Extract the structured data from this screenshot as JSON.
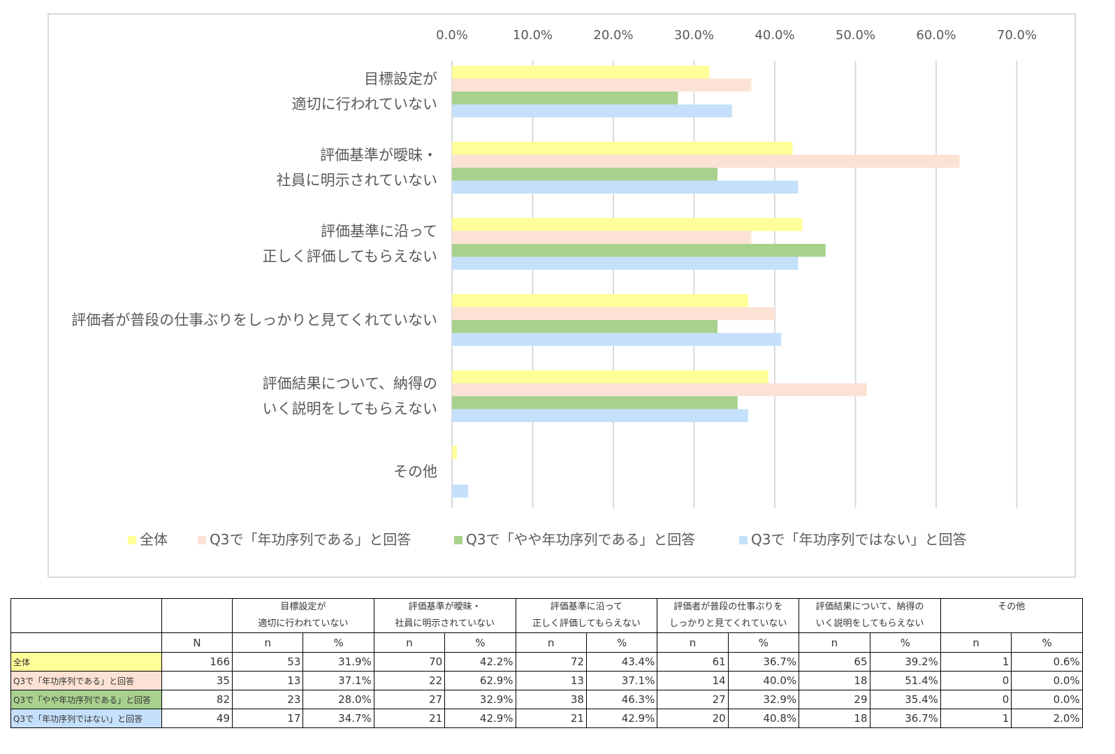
{
  "chart_data": {
    "type": "bar",
    "orientation": "horizontal",
    "categories": [
      [
        "目標設定が",
        "適切に行われていない"
      ],
      [
        "評価基準が曖昧・",
        "社員に明示されていない"
      ],
      [
        "評価基準に沿って",
        "正しく評価してもらえない"
      ],
      [
        "評価者が普段の仕事ぶりをしっかりと見てくれていない"
      ],
      [
        "評価結果について、納得の",
        "いく説明をしてもらえない"
      ],
      [
        "その他"
      ]
    ],
    "series": [
      {
        "name": "全体",
        "color": "#ffff99",
        "values": [
          31.9,
          42.2,
          43.4,
          36.7,
          39.2,
          0.6
        ]
      },
      {
        "name": "Q3で「年功序列である」と回答",
        "color": "#fbe2d5",
        "values": [
          37.1,
          62.9,
          37.1,
          40.0,
          51.4,
          0.0
        ]
      },
      {
        "name": "Q3で「やや年功序列である」と回答",
        "color": "#a9d18e",
        "values": [
          28.0,
          32.9,
          46.3,
          32.9,
          35.4,
          0.0
        ]
      },
      {
        "name": "Q3で「年功序列ではない」と回答",
        "color": "#c5e0fa",
        "values": [
          34.7,
          42.9,
          42.9,
          40.8,
          36.7,
          2.0
        ]
      }
    ],
    "xlim": [
      0,
      70
    ],
    "xticks": [
      "0.0%",
      "10.0%",
      "20.0%",
      "30.0%",
      "40.0%",
      "50.0%",
      "60.0%",
      "70.0%"
    ],
    "grid": true,
    "legend_position": "bottom"
  },
  "table": {
    "header_groups": [
      [
        "目標設定が",
        "適切に行われていない"
      ],
      [
        "評価基準が曖昧・",
        "社員に明示されていない"
      ],
      [
        "評価基準に沿って",
        "正しく評価してもらえない"
      ],
      [
        "評価者が普段の仕事ぶりを",
        "しっかりと見てくれていない"
      ],
      [
        "評価結果について、納得の",
        "いく説明をしてもらえない"
      ],
      [
        "その他"
      ]
    ],
    "subheaders": {
      "N": "N",
      "n": "n",
      "pct": "%"
    },
    "rows": [
      {
        "label": "全体",
        "color": "#ffff99",
        "N": "166",
        "cells": [
          [
            "53",
            "31.9%"
          ],
          [
            "70",
            "42.2%"
          ],
          [
            "72",
            "43.4%"
          ],
          [
            "61",
            "36.7%"
          ],
          [
            "65",
            "39.2%"
          ],
          [
            "1",
            "0.6%"
          ]
        ]
      },
      {
        "label": "Q3で「年功序列である」と回答",
        "color": "#fbe2d5",
        "N": "35",
        "cells": [
          [
            "13",
            "37.1%"
          ],
          [
            "22",
            "62.9%"
          ],
          [
            "13",
            "37.1%"
          ],
          [
            "14",
            "40.0%"
          ],
          [
            "18",
            "51.4%"
          ],
          [
            "0",
            "0.0%"
          ]
        ]
      },
      {
        "label": "Q3で「やや年功序列である」と回答",
        "color": "#a9d18e",
        "N": "82",
        "cells": [
          [
            "23",
            "28.0%"
          ],
          [
            "27",
            "32.9%"
          ],
          [
            "38",
            "46.3%"
          ],
          [
            "27",
            "32.9%"
          ],
          [
            "29",
            "35.4%"
          ],
          [
            "0",
            "0.0%"
          ]
        ]
      },
      {
        "label": "Q3で「年功序列ではない」と回答",
        "color": "#c5e0fa",
        "N": "49",
        "cells": [
          [
            "17",
            "34.7%"
          ],
          [
            "21",
            "42.9%"
          ],
          [
            "21",
            "42.9%"
          ],
          [
            "20",
            "40.8%"
          ],
          [
            "18",
            "36.7%"
          ],
          [
            "1",
            "2.0%"
          ]
        ]
      }
    ]
  }
}
